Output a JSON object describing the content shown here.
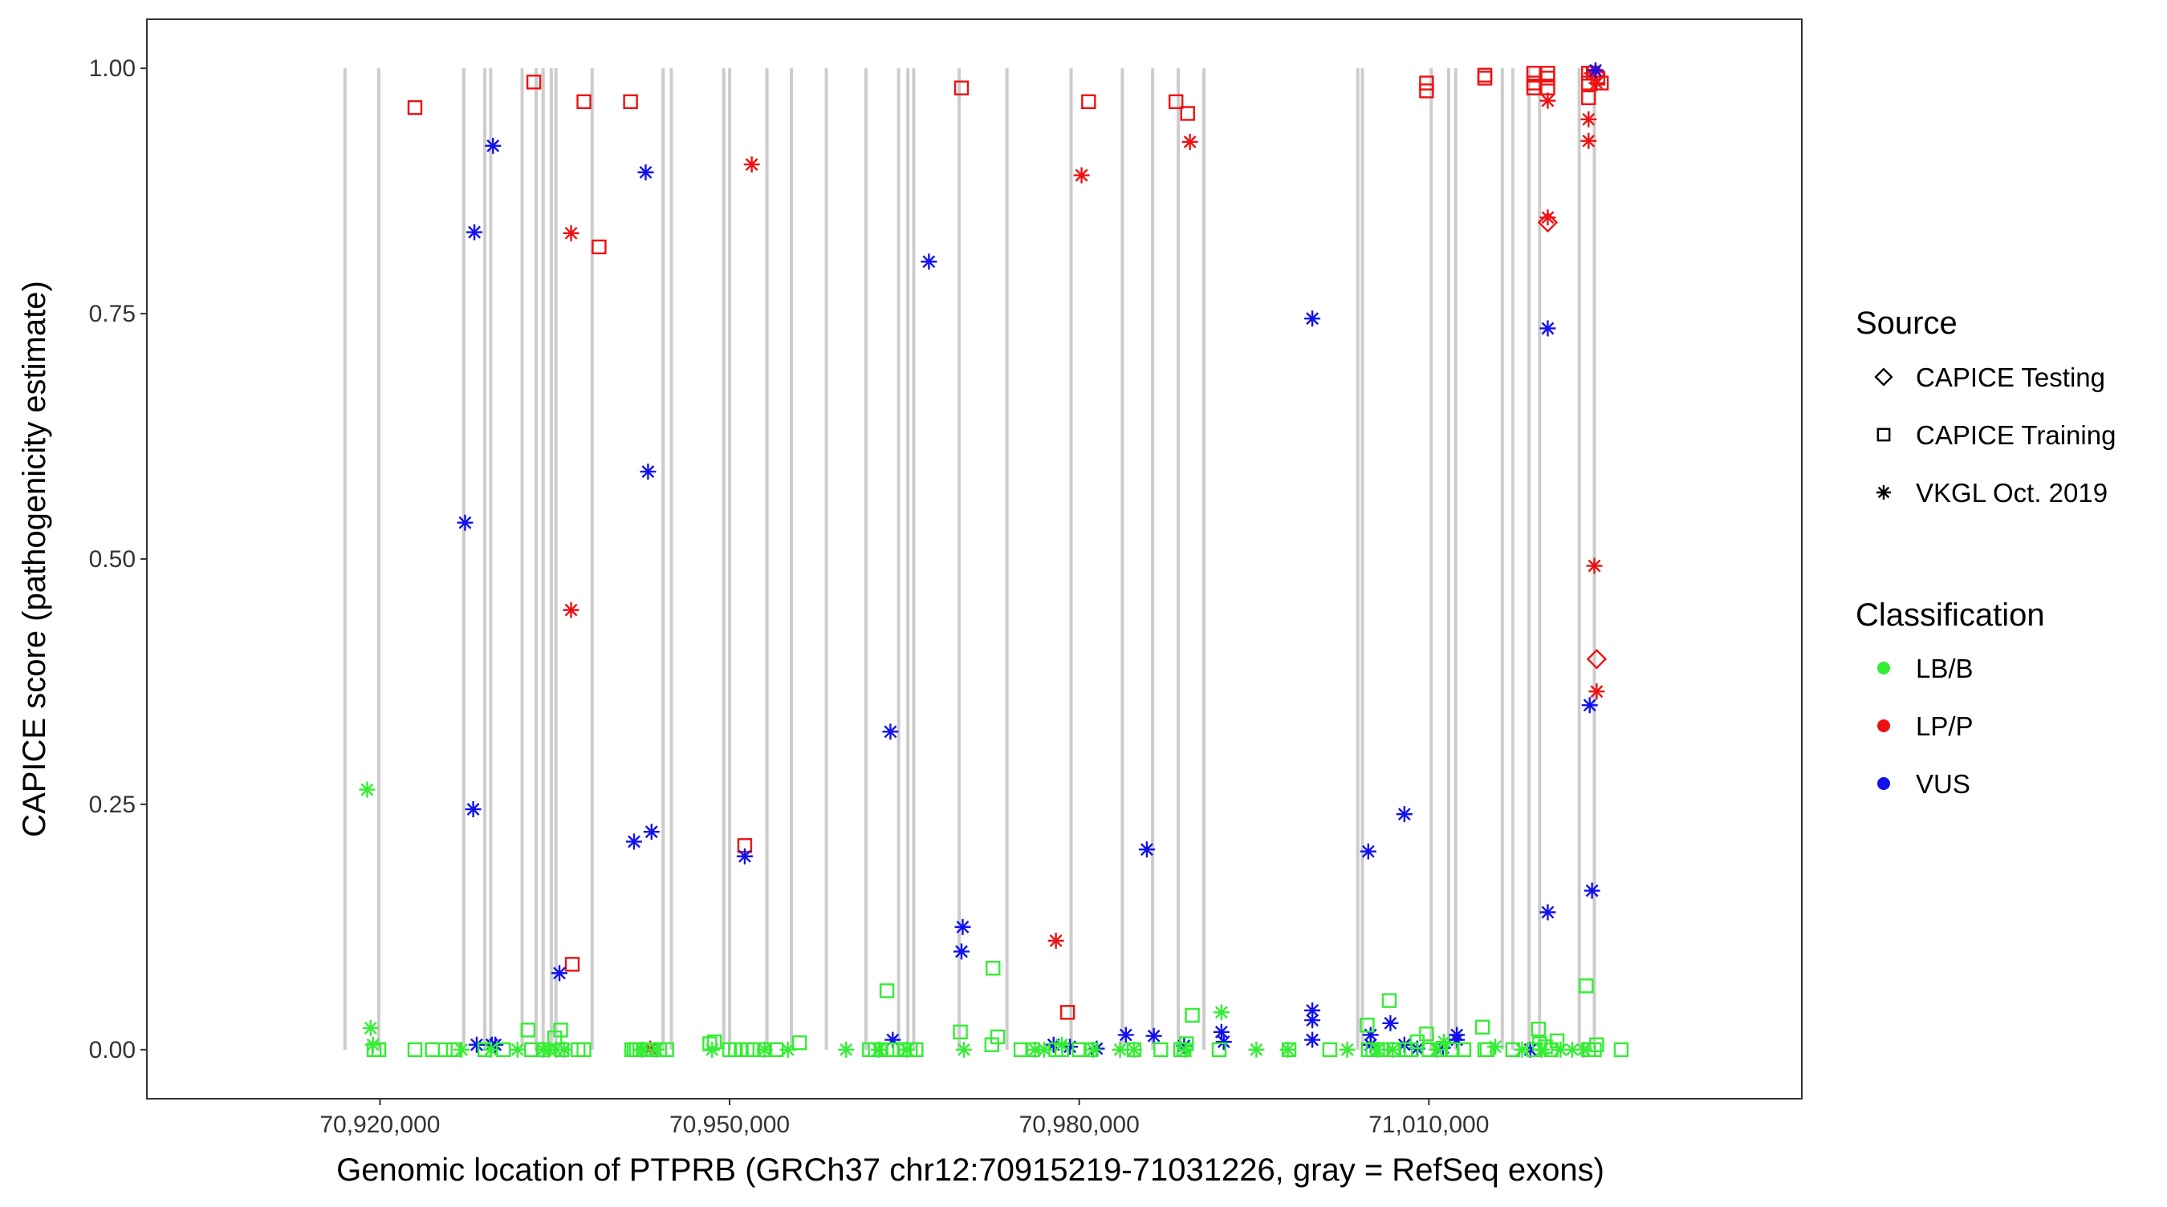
{
  "chart_data": {
    "type": "scatter",
    "title": "",
    "xlabel": "Genomic location of PTPRB (GRCh37 chr12:70915219-71031226, gray = RefSeq exons)",
    "ylabel": "CAPICE score (pathogenicity estimate)",
    "xlim": [
      70900000,
      71042000
    ],
    "ylim": [
      -0.05,
      1.05
    ],
    "x_ticks": [
      70920000,
      70950000,
      70980000,
      71010000
    ],
    "x_tick_labels": [
      "70,920,000",
      "70,950,000",
      "70,980,000",
      "71,010,000"
    ],
    "y_ticks": [
      0,
      0.25,
      0.5,
      0.75,
      1
    ],
    "y_tick_labels": [
      "0.00",
      "0.25",
      "0.50",
      "0.75",
      "1.00"
    ],
    "grid": false,
    "legend_position": "right",
    "exon_color": "#cccccc",
    "exons": [
      70917000,
      70919900,
      70927200,
      70929000,
      70929500,
      70932200,
      70933400,
      70934000,
      70934700,
      70935100,
      70938200,
      70944300,
      70945000,
      70949500,
      70950000,
      70953200,
      70955300,
      70958300,
      70961700,
      70964500,
      70965300,
      70965800,
      70969700,
      70973800,
      70979300,
      70983700,
      70986300,
      70988500,
      70990700,
      71003900,
      71004300,
      71010200,
      71011700,
      71012300,
      71016300,
      71017200,
      71018600,
      71019500,
      71022900,
      71024200
    ],
    "legends": {
      "source": {
        "title": "Source",
        "items": [
          {
            "label": "CAPICE Testing",
            "shape": "diamond"
          },
          {
            "label": "CAPICE Training",
            "shape": "square"
          },
          {
            "label": "VKGL Oct. 2019",
            "shape": "asterisk"
          }
        ]
      },
      "classification": {
        "title": "Classification",
        "items": [
          {
            "label": "LB/B",
            "color": "#33ee33"
          },
          {
            "label": "LP/P",
            "color": "#ee1111"
          },
          {
            "label": "VUS",
            "color": "#1111ee"
          }
        ]
      }
    },
    "series": [
      {
        "classification": "LP/P",
        "source": "CAPICE Training",
        "points": [
          [
            70923000,
            0.96
          ],
          [
            70933200,
            0.986
          ],
          [
            70937500,
            0.966
          ],
          [
            70941500,
            0.966
          ],
          [
            70969900,
            0.98
          ],
          [
            70980800,
            0.966
          ],
          [
            70988300,
            0.966
          ],
          [
            70989300,
            0.954
          ],
          [
            71009800,
            0.985
          ],
          [
            71009800,
            0.977
          ],
          [
            71014800,
            0.99
          ],
          [
            71014800,
            0.993
          ],
          [
            71019000,
            0.995
          ],
          [
            71019000,
            0.985
          ],
          [
            71019000,
            0.98
          ],
          [
            71020200,
            0.995
          ],
          [
            71020200,
            0.99
          ],
          [
            71020200,
            0.98
          ],
          [
            71023700,
            0.995
          ],
          [
            71023700,
            0.985
          ],
          [
            71023700,
            0.97
          ],
          [
            71024100,
            0.995
          ],
          [
            71024500,
            0.99
          ],
          [
            71024800,
            0.985
          ],
          [
            70938800,
            0.818
          ],
          [
            70936500,
            0.087
          ],
          [
            70951300,
            0.208
          ],
          [
            70979000,
            0.038
          ]
        ]
      },
      {
        "classification": "LP/P",
        "source": "VKGL Oct. 2019",
        "points": [
          [
            70936400,
            0.832
          ],
          [
            70936400,
            0.448
          ],
          [
            70951900,
            0.902
          ],
          [
            70980200,
            0.891
          ],
          [
            70989500,
            0.925
          ],
          [
            71020200,
            0.967
          ],
          [
            71020200,
            0.848
          ],
          [
            71023700,
            0.948
          ],
          [
            71023700,
            0.926
          ],
          [
            71024200,
            0.493
          ],
          [
            71024400,
            0.365
          ],
          [
            70978000,
            0.111
          ],
          [
            70943200,
            0.001
          ],
          [
            71024000,
            0.995
          ],
          [
            71024400,
            0.985
          ]
        ]
      },
      {
        "classification": "LP/P",
        "source": "CAPICE Testing",
        "points": [
          [
            71020200,
            0.843
          ],
          [
            71024400,
            0.398
          ],
          [
            71024300,
            0.994
          ]
        ]
      },
      {
        "classification": "VUS",
        "source": "VKGL Oct. 2019",
        "points": [
          [
            70929700,
            0.921
          ],
          [
            70928100,
            0.833
          ],
          [
            70927300,
            0.537
          ],
          [
            70928000,
            0.245
          ],
          [
            70942800,
            0.894
          ],
          [
            70943000,
            0.589
          ],
          [
            70941800,
            0.212
          ],
          [
            70943300,
            0.222
          ],
          [
            70935400,
            0.078
          ],
          [
            70951300,
            0.197
          ],
          [
            70963800,
            0.324
          ],
          [
            70967100,
            0.803
          ],
          [
            70970000,
            0.125
          ],
          [
            70969900,
            0.1
          ],
          [
            70985800,
            0.204
          ],
          [
            71000000,
            0.745
          ],
          [
            71004800,
            0.202
          ],
          [
            71007900,
            0.24
          ],
          [
            71020200,
            0.735
          ],
          [
            71020200,
            0.14
          ],
          [
            71023800,
            0.351
          ],
          [
            71024000,
            0.162
          ],
          [
            70928300,
            0.005
          ],
          [
            70929600,
            0.005
          ],
          [
            70929900,
            0.005
          ],
          [
            70964000,
            0.01
          ],
          [
            70977800,
            0.005
          ],
          [
            70979200,
            0.003
          ],
          [
            70981500,
            0.001
          ],
          [
            70984000,
            0.015
          ],
          [
            70986400,
            0.014
          ],
          [
            70989000,
            0.004
          ],
          [
            70992200,
            0.018
          ],
          [
            70992400,
            0.008
          ],
          [
            71000000,
            0.04
          ],
          [
            71000000,
            0.03
          ],
          [
            71000000,
            0.01
          ],
          [
            71005000,
            0.015
          ],
          [
            71005000,
            0.005
          ],
          [
            71006700,
            0.027
          ],
          [
            71007900,
            0.005
          ],
          [
            71009000,
            0.001
          ],
          [
            71011200,
            0.002
          ],
          [
            71012400,
            0.01
          ],
          [
            71012400,
            0.015
          ],
          [
            71018700,
            0.0
          ],
          [
            71024300,
            0.998
          ]
        ]
      },
      {
        "classification": "LB/B",
        "source": "VKGL Oct. 2019",
        "points": [
          [
            70918900,
            0.265
          ],
          [
            70919200,
            0.022
          ],
          [
            70919400,
            0.005
          ],
          [
            70927000,
            0.0
          ],
          [
            70929500,
            0.0
          ],
          [
            70931800,
            0.0
          ],
          [
            70934000,
            0.0
          ],
          [
            70934500,
            0.0
          ],
          [
            70935100,
            0.0
          ],
          [
            70935800,
            0.0
          ],
          [
            70942500,
            0.0
          ],
          [
            70943700,
            0.0
          ],
          [
            70948500,
            0.0
          ],
          [
            70953000,
            0.0
          ],
          [
            70955000,
            0.0
          ],
          [
            70960000,
            0.0
          ],
          [
            70962800,
            0.0
          ],
          [
            70965200,
            0.0
          ],
          [
            70970100,
            0.0
          ],
          [
            70976200,
            0.0
          ],
          [
            70977000,
            0.0
          ],
          [
            70978500,
            0.005
          ],
          [
            70981200,
            0.0
          ],
          [
            70983500,
            0.0
          ],
          [
            70984700,
            0.0
          ],
          [
            70989100,
            0.0
          ],
          [
            70992200,
            0.038
          ],
          [
            70995200,
            0.0
          ],
          [
            70997900,
            0.0
          ],
          [
            71003000,
            0.0
          ],
          [
            71005600,
            0.0
          ],
          [
            71006900,
            0.0
          ],
          [
            71010700,
            0.0
          ],
          [
            71011300,
            0.008
          ],
          [
            71015700,
            0.003
          ],
          [
            71018000,
            0.0
          ],
          [
            71019700,
            0.0
          ],
          [
            71021300,
            0.0
          ],
          [
            71022300,
            0.0
          ],
          [
            71023300,
            0.0
          ]
        ]
      },
      {
        "classification": "LB/B",
        "source": "CAPICE Training",
        "points": [
          [
            70919500,
            0.0
          ],
          [
            70919900,
            0.0
          ],
          [
            70923000,
            0.0
          ],
          [
            70924500,
            0.0
          ],
          [
            70925600,
            0.0
          ],
          [
            70926300,
            0.0
          ],
          [
            70929000,
            0.0
          ],
          [
            70930600,
            0.0
          ],
          [
            70932700,
            0.02
          ],
          [
            70933000,
            0.0
          ],
          [
            70934000,
            0.0
          ],
          [
            70935000,
            0.012
          ],
          [
            70935500,
            0.02
          ],
          [
            70935600,
            0.0
          ],
          [
            70937000,
            0.0
          ],
          [
            70937500,
            0.0
          ],
          [
            70941600,
            0.0
          ],
          [
            70941800,
            0.0
          ],
          [
            70942000,
            0.0
          ],
          [
            70942300,
            0.0
          ],
          [
            70942600,
            0.0
          ],
          [
            70943300,
            0.0
          ],
          [
            70944000,
            0.0
          ],
          [
            70944600,
            0.0
          ],
          [
            70948300,
            0.006
          ],
          [
            70948700,
            0.008
          ],
          [
            70950000,
            0.0
          ],
          [
            70950500,
            0.0
          ],
          [
            70951000,
            0.0
          ],
          [
            70951500,
            0.0
          ],
          [
            70952000,
            0.0
          ],
          [
            70953000,
            0.0
          ],
          [
            70954000,
            0.0
          ],
          [
            70956000,
            0.007
          ],
          [
            70962000,
            0.0
          ],
          [
            70962500,
            0.0
          ],
          [
            70963000,
            0.0
          ],
          [
            70963500,
            0.0
          ],
          [
            70963500,
            0.06
          ],
          [
            70964000,
            0.0
          ],
          [
            70965000,
            0.0
          ],
          [
            70965500,
            0.0
          ],
          [
            70966000,
            0.0
          ],
          [
            70969800,
            0.018
          ],
          [
            70972500,
            0.005
          ],
          [
            70972600,
            0.083
          ],
          [
            70973000,
            0.013
          ],
          [
            70975000,
            0.0
          ],
          [
            70976000,
            0.0
          ],
          [
            70978000,
            0.0
          ],
          [
            70978500,
            0.0
          ],
          [
            70980000,
            0.0
          ],
          [
            70981000,
            0.0
          ],
          [
            70984700,
            0.0
          ],
          [
            70987000,
            0.0
          ],
          [
            70988700,
            0.0
          ],
          [
            70989000,
            0.0
          ],
          [
            70989200,
            0.006
          ],
          [
            70989700,
            0.035
          ],
          [
            70992000,
            0.0
          ],
          [
            70998000,
            0.0
          ],
          [
            71001500,
            0.0
          ],
          [
            71004700,
            0.025
          ],
          [
            71004800,
            0.0
          ],
          [
            71005200,
            0.0
          ],
          [
            71005600,
            0.0
          ],
          [
            71006000,
            0.0
          ],
          [
            71006600,
            0.05
          ],
          [
            71007000,
            0.0
          ],
          [
            71008000,
            0.0
          ],
          [
            71008500,
            0.0
          ],
          [
            71009000,
            0.008
          ],
          [
            71009800,
            0.016
          ],
          [
            71010000,
            0.0
          ],
          [
            71011000,
            0.0
          ],
          [
            71012000,
            0.0
          ],
          [
            71013000,
            0.0
          ],
          [
            71014600,
            0.023
          ],
          [
            71014800,
            0.0
          ],
          [
            71015000,
            0.0
          ],
          [
            71017200,
            0.0
          ],
          [
            71019000,
            0.0
          ],
          [
            71019400,
            0.021
          ],
          [
            71019500,
            0.006
          ],
          [
            71020000,
            0.003
          ],
          [
            71020500,
            0.0
          ],
          [
            71021000,
            0.009
          ],
          [
            71023500,
            0.065
          ],
          [
            71023700,
            0.0
          ],
          [
            71024200,
            0.0
          ],
          [
            71024400,
            0.005
          ],
          [
            71026500,
            0.0
          ]
        ]
      }
    ]
  }
}
